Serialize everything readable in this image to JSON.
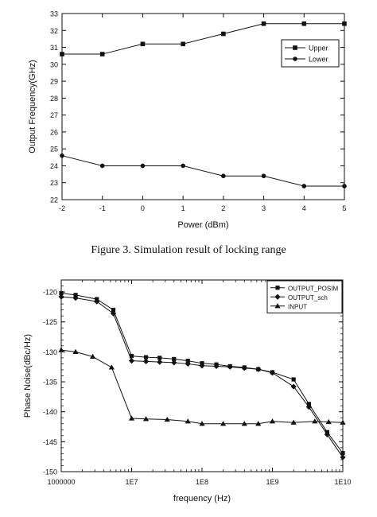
{
  "caption": "Figure 3.    Simulation result of locking range",
  "chart_data": [
    {
      "type": "line",
      "xlabel": "Power (dBm)",
      "ylabel": "Output Frequency(GHz)",
      "xlim": [
        -2,
        5
      ],
      "ylim": [
        22,
        33
      ],
      "x_ticks": [
        "-2",
        "-1",
        "0",
        "1",
        "2",
        "3",
        "4",
        "5"
      ],
      "y_ticks": [
        "22",
        "23",
        "24",
        "25",
        "26",
        "27",
        "28",
        "29",
        "30",
        "31",
        "32",
        "33"
      ],
      "grid": false,
      "legend_position": "upper-right",
      "x": [
        -2,
        -1,
        0,
        1,
        2,
        3,
        4,
        5
      ],
      "series": [
        {
          "name": "Upper",
          "marker": "square",
          "values": [
            30.6,
            30.6,
            31.2,
            31.2,
            31.8,
            32.4,
            32.4,
            32.4
          ]
        },
        {
          "name": "Lower",
          "marker": "circle",
          "values": [
            24.6,
            24.0,
            24.0,
            24.0,
            23.4,
            23.4,
            22.8,
            22.8
          ]
        }
      ]
    },
    {
      "type": "line",
      "xlabel": "frequency (Hz)",
      "ylabel": "Phase Noise(dBc/Hz)",
      "x_scale": "log",
      "xlim": [
        1000000,
        10000000000
      ],
      "ylim": [
        -150,
        -118
      ],
      "x_ticks": [
        "1000000",
        "1E7",
        "1E8",
        "1E9",
        "1E10"
      ],
      "y_ticks": [
        "-120",
        "-125",
        "-130",
        "-135",
        "-140",
        "-145",
        "-150"
      ],
      "grid": false,
      "legend_position": "upper-right",
      "series": [
        {
          "name": "OUTPUT_POSIM",
          "marker": "square",
          "x": [
            1000000,
            1600000,
            3200000,
            5500000,
            10000000,
            16000000,
            25000000,
            40000000,
            63000000,
            100000000,
            160000000,
            250000000,
            400000000,
            630000000,
            1000000000,
            2000000000,
            3300000000,
            6000000000,
            10000000000
          ],
          "values": [
            -120.2,
            -120.5,
            -121.2,
            -123.0,
            -130.7,
            -130.9,
            -131.0,
            -131.2,
            -131.5,
            -131.9,
            -132.1,
            -132.4,
            -132.6,
            -132.9,
            -133.4,
            -134.6,
            -138.7,
            -143.4,
            -146.9
          ]
        },
        {
          "name": "OUTPUT_sch",
          "marker": "diamond",
          "x": [
            1000000,
            1600000,
            3200000,
            5500000,
            10000000,
            16000000,
            25000000,
            40000000,
            63000000,
            100000000,
            160000000,
            250000000,
            400000000,
            630000000,
            1000000000,
            2000000000,
            3300000000,
            6000000000,
            10000000000
          ],
          "values": [
            -120.8,
            -121.0,
            -121.6,
            -123.6,
            -131.5,
            -131.6,
            -131.7,
            -131.8,
            -132.0,
            -132.3,
            -132.4,
            -132.5,
            -132.7,
            -132.9,
            -133.5,
            -135.8,
            -139.2,
            -143.8,
            -147.6
          ]
        },
        {
          "name": "INPUT",
          "marker": "triangle",
          "x": [
            1000000,
            1600000,
            2800000,
            5200000,
            10000000,
            16000000,
            32000000,
            63000000,
            100000000,
            200000000,
            400000000,
            630000000,
            1000000000,
            2000000000,
            4000000000,
            6300000000,
            10000000000
          ],
          "values": [
            -129.7,
            -130.0,
            -130.8,
            -132.6,
            -141.1,
            -141.2,
            -141.3,
            -141.6,
            -142.0,
            -142.0,
            -142.0,
            -142.0,
            -141.6,
            -141.8,
            -141.6,
            -141.7,
            -141.8
          ]
        }
      ]
    }
  ]
}
